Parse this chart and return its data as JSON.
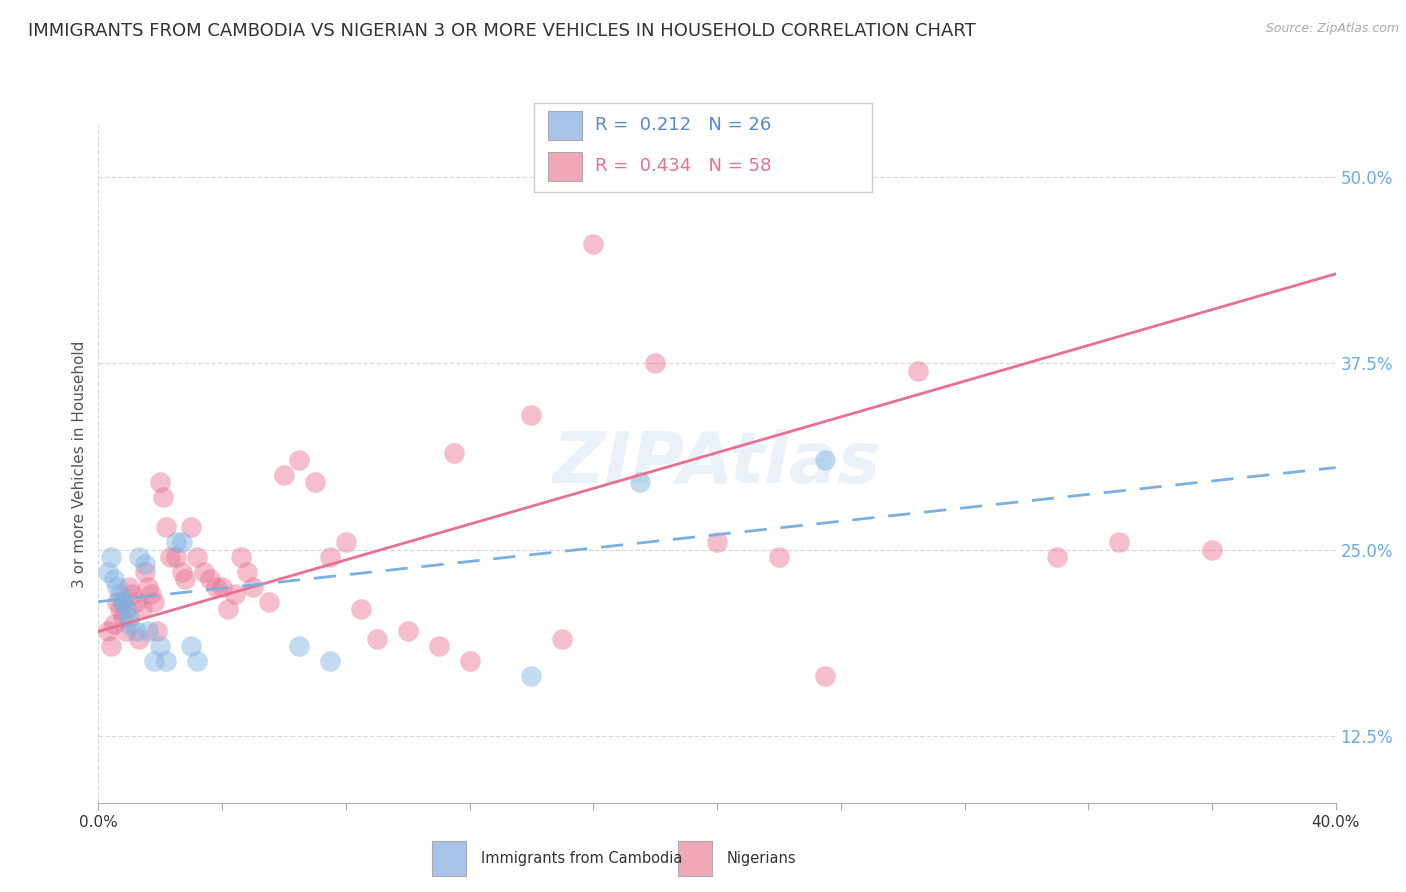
{
  "title": "IMMIGRANTS FROM CAMBODIA VS NIGERIAN 3 OR MORE VEHICLES IN HOUSEHOLD CORRELATION CHART",
  "source": "Source: ZipAtlas.com",
  "ylabel": "3 or more Vehicles in Household",
  "xlim": [
    0.0,
    0.4
  ],
  "ylim": [
    0.08,
    0.535
  ],
  "yticks": [
    0.125,
    0.25,
    0.375,
    0.5
  ],
  "ytick_labels": [
    "12.5%",
    "25.0%",
    "37.5%",
    "50.0%"
  ],
  "xticks": [
    0.0,
    0.04,
    0.08,
    0.12,
    0.16,
    0.2,
    0.24,
    0.28,
    0.32,
    0.36,
    0.4
  ],
  "xtick_labels": [
    "0.0%",
    "",
    "",
    "",
    "",
    "",
    "",
    "",
    "",
    "",
    "40.0%"
  ],
  "legend1_label": "R =  0.212   N = 26",
  "legend2_label": "R =  0.434   N = 58",
  "legend1_color": "#a8c4e8",
  "legend2_color": "#f0a8b8",
  "series1_name": "Immigrants from Cambodia",
  "series2_name": "Nigerians",
  "series1_color": "#7ab0e0",
  "series2_color": "#e87090",
  "background_color": "#ffffff",
  "grid_color": "#d8d8d8",
  "title_fontsize": 13,
  "axis_label_fontsize": 11,
  "tick_fontsize": 11,
  "watermark": "ZIPAtlas",
  "series1_x": [
    0.003,
    0.004,
    0.005,
    0.006,
    0.007,
    0.008,
    0.008,
    0.009,
    0.01,
    0.01,
    0.012,
    0.013,
    0.015,
    0.016,
    0.018,
    0.02,
    0.022,
    0.025,
    0.027,
    0.03,
    0.032,
    0.065,
    0.075,
    0.14,
    0.175,
    0.235
  ],
  "series1_y": [
    0.235,
    0.245,
    0.23,
    0.225,
    0.22,
    0.215,
    0.215,
    0.21,
    0.205,
    0.2,
    0.195,
    0.245,
    0.24,
    0.195,
    0.175,
    0.185,
    0.175,
    0.255,
    0.255,
    0.185,
    0.175,
    0.185,
    0.175,
    0.165,
    0.295,
    0.31
  ],
  "series2_x": [
    0.003,
    0.004,
    0.005,
    0.006,
    0.007,
    0.008,
    0.009,
    0.01,
    0.011,
    0.012,
    0.013,
    0.014,
    0.015,
    0.016,
    0.017,
    0.018,
    0.019,
    0.02,
    0.021,
    0.022,
    0.023,
    0.025,
    0.027,
    0.028,
    0.03,
    0.032,
    0.034,
    0.036,
    0.038,
    0.04,
    0.042,
    0.044,
    0.046,
    0.048,
    0.05,
    0.055,
    0.06,
    0.065,
    0.07,
    0.075,
    0.08,
    0.085,
    0.09,
    0.1,
    0.11,
    0.115,
    0.12,
    0.14,
    0.15,
    0.16,
    0.18,
    0.2,
    0.22,
    0.235,
    0.265,
    0.31,
    0.33,
    0.36
  ],
  "series2_y": [
    0.195,
    0.185,
    0.2,
    0.215,
    0.21,
    0.205,
    0.195,
    0.225,
    0.22,
    0.215,
    0.19,
    0.21,
    0.235,
    0.225,
    0.22,
    0.215,
    0.195,
    0.295,
    0.285,
    0.265,
    0.245,
    0.245,
    0.235,
    0.23,
    0.265,
    0.245,
    0.235,
    0.23,
    0.225,
    0.225,
    0.21,
    0.22,
    0.245,
    0.235,
    0.225,
    0.215,
    0.3,
    0.31,
    0.295,
    0.245,
    0.255,
    0.21,
    0.19,
    0.195,
    0.185,
    0.315,
    0.175,
    0.34,
    0.19,
    0.455,
    0.375,
    0.255,
    0.245,
    0.165,
    0.37,
    0.245,
    0.255,
    0.25
  ],
  "trend1_x0": 0.0,
  "trend1_y0": 0.215,
  "trend1_x1": 0.4,
  "trend1_y1": 0.305,
  "trend2_x0": 0.0,
  "trend2_y0": 0.195,
  "trend2_x1": 0.4,
  "trend2_y1": 0.435
}
